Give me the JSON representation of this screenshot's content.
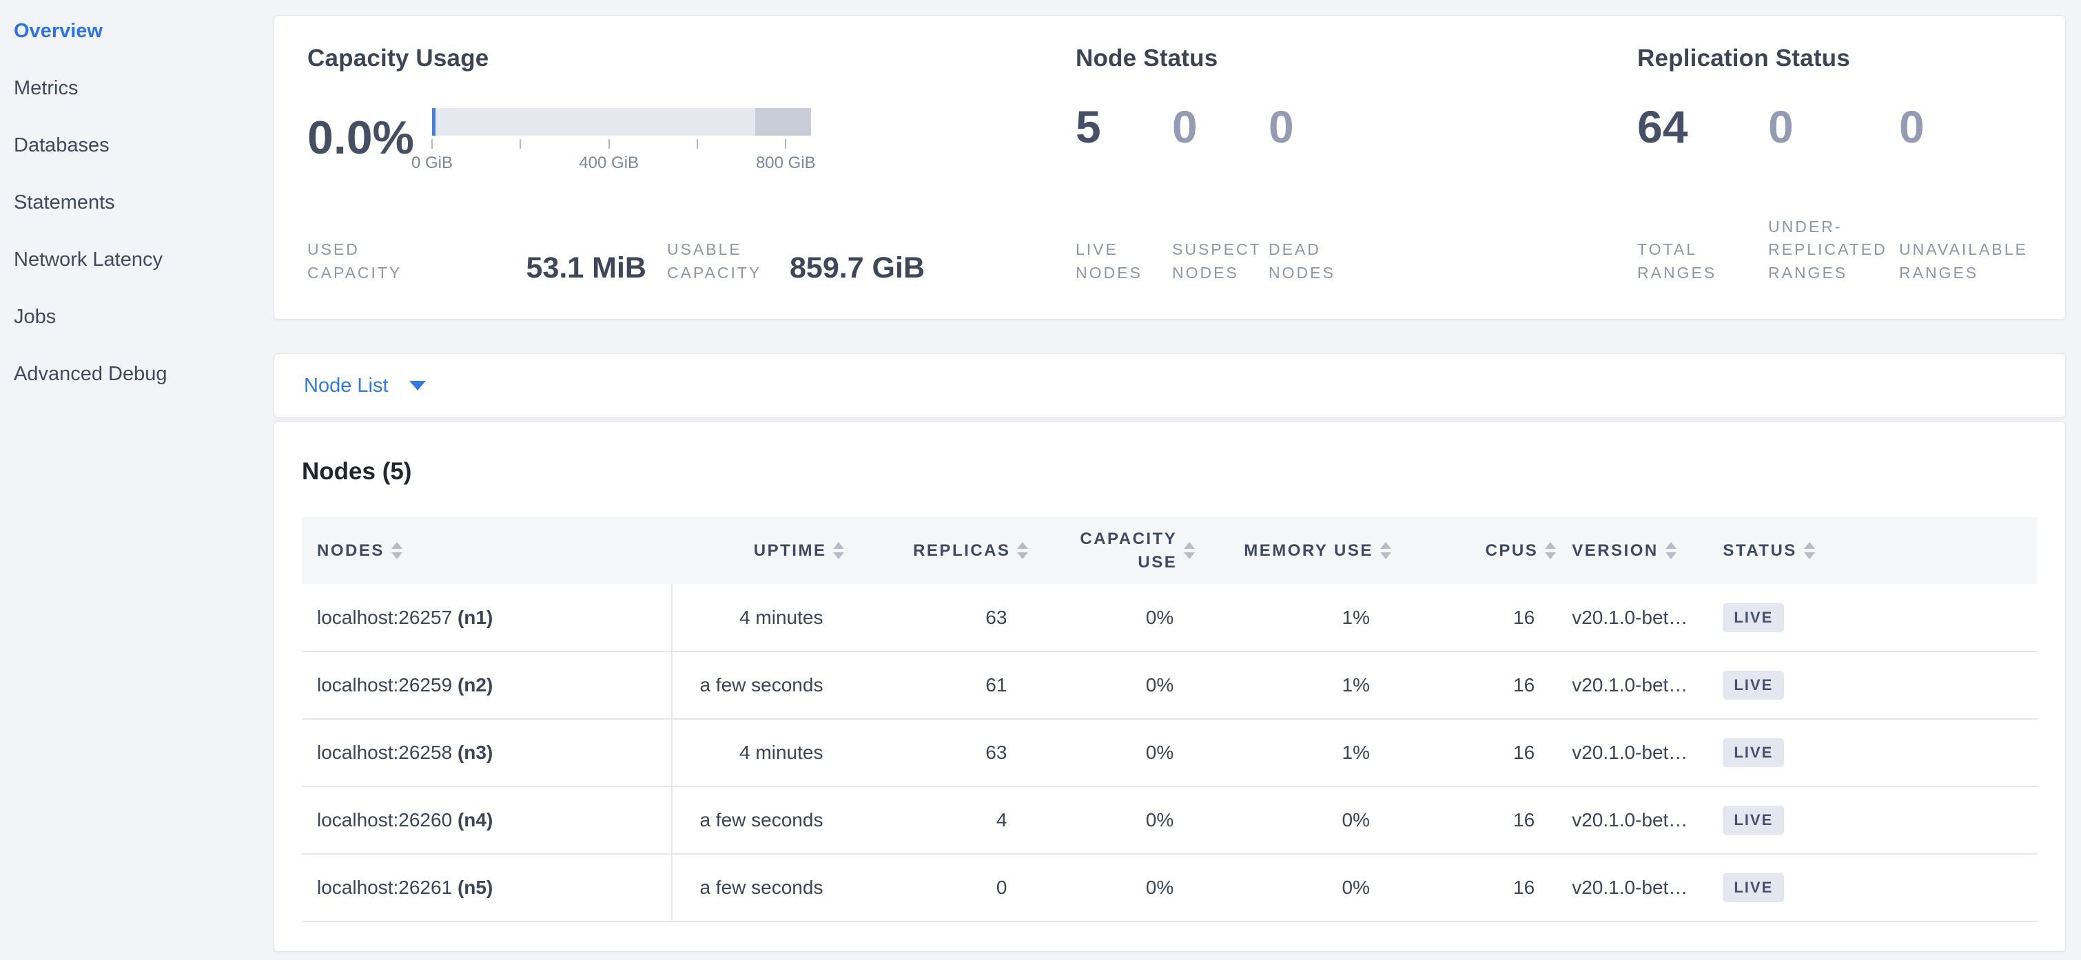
{
  "colors": {
    "accent_blue": "#2b74e8",
    "link_blue": "#2f7ae5",
    "bar_track": "#e6e8ef",
    "bar_dark_segment": "#c9cdd8",
    "bar_used_marker": "#3f7fe0",
    "badge_bg": "#e4e7f0",
    "badge_text": "#47506a"
  },
  "sidebar": {
    "items": [
      {
        "label": "Overview",
        "active": true
      },
      {
        "label": "Metrics",
        "active": false
      },
      {
        "label": "Databases",
        "active": false
      },
      {
        "label": "Statements",
        "active": false
      },
      {
        "label": "Network Latency",
        "active": false
      },
      {
        "label": "Jobs",
        "active": false
      },
      {
        "label": "Advanced Debug",
        "active": false
      }
    ]
  },
  "summary": {
    "capacity": {
      "title": "Capacity Usage",
      "used_percent": "0.0%",
      "bar": {
        "axis_tick_labels": [
          "0 GiB",
          "400 GiB",
          "800 GiB"
        ],
        "dark_segment_from_percent": 85.2
      },
      "metrics": [
        {
          "label": "USED CAPACITY",
          "value": "53.1 MiB"
        },
        {
          "label": "USABLE CAPACITY",
          "value": "859.7 GiB"
        }
      ]
    },
    "node_status": {
      "title": "Node Status",
      "metrics": [
        {
          "value": "5",
          "label": "LIVE NODES",
          "dim": false
        },
        {
          "value": "0",
          "label": "SUSPECT NODES",
          "dim": true
        },
        {
          "value": "0",
          "label": "DEAD NODES",
          "dim": true
        }
      ]
    },
    "replication": {
      "title": "Replication Status",
      "metrics": [
        {
          "value": "64",
          "label": "TOTAL RANGES",
          "dim": false
        },
        {
          "value": "0",
          "label": "UNDER-REPLICATED RANGES",
          "dim": true
        },
        {
          "value": "0",
          "label": "UNAVAILABLE RANGES",
          "dim": true
        }
      ]
    }
  },
  "node_list": {
    "label": "Node List"
  },
  "nodes_section": {
    "title": "Nodes (5)",
    "table": {
      "columns": [
        {
          "label": "NODES",
          "align": "left",
          "wrap": false
        },
        {
          "label": "UPTIME",
          "align": "right",
          "wrap": false
        },
        {
          "label": "REPLICAS",
          "align": "right",
          "wrap": false
        },
        {
          "label": "CAPACITY USE",
          "align": "right",
          "wrap": true
        },
        {
          "label": "MEMORY USE",
          "align": "right",
          "wrap": false
        },
        {
          "label": "CPUS",
          "align": "right",
          "wrap": false
        },
        {
          "label": "VERSION",
          "align": "left",
          "wrap": false
        },
        {
          "label": "STATUS",
          "align": "left",
          "wrap": false
        }
      ],
      "rows": [
        {
          "node": "localhost:26257",
          "id": "(n1)",
          "uptime": "4 minutes",
          "replicas": "63",
          "capacity_use": "0%",
          "memory_use": "1%",
          "cpus": "16",
          "version": "v20.1.0-bet…",
          "status": "LIVE"
        },
        {
          "node": "localhost:26259",
          "id": "(n2)",
          "uptime": "a few seconds",
          "replicas": "61",
          "capacity_use": "0%",
          "memory_use": "1%",
          "cpus": "16",
          "version": "v20.1.0-bet…",
          "status": "LIVE"
        },
        {
          "node": "localhost:26258",
          "id": "(n3)",
          "uptime": "4 minutes",
          "replicas": "63",
          "capacity_use": "0%",
          "memory_use": "1%",
          "cpus": "16",
          "version": "v20.1.0-bet…",
          "status": "LIVE"
        },
        {
          "node": "localhost:26260",
          "id": "(n4)",
          "uptime": "a few seconds",
          "replicas": "4",
          "capacity_use": "0%",
          "memory_use": "0%",
          "cpus": "16",
          "version": "v20.1.0-bet…",
          "status": "LIVE"
        },
        {
          "node": "localhost:26261",
          "id": "(n5)",
          "uptime": "a few seconds",
          "replicas": "0",
          "capacity_use": "0%",
          "memory_use": "0%",
          "cpus": "16",
          "version": "v20.1.0-bet…",
          "status": "LIVE"
        }
      ]
    }
  }
}
